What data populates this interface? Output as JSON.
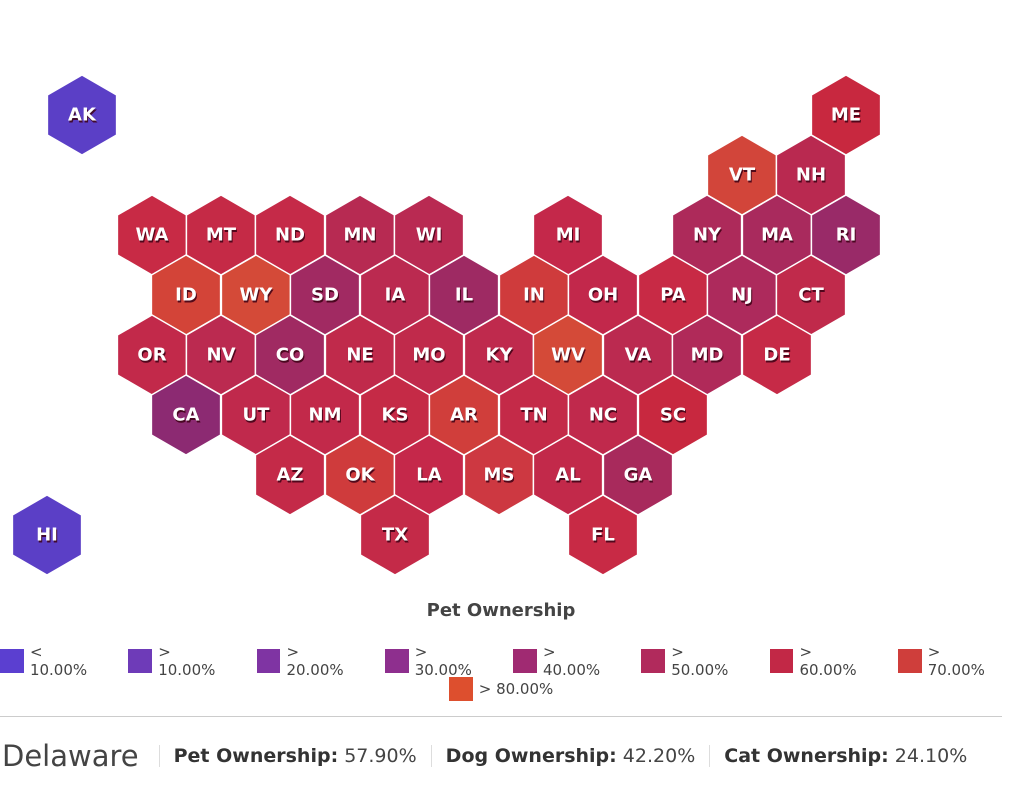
{
  "map": {
    "states": [
      {
        "label": "AK",
        "color": "#5b3fc6"
      },
      {
        "label": "ME",
        "color": "#c8283f"
      },
      {
        "label": "VT",
        "color": "#d2453a"
      },
      {
        "label": "NH",
        "color": "#b92950"
      },
      {
        "label": "WA",
        "color": "#c82a45"
      },
      {
        "label": "MT",
        "color": "#c52a46"
      },
      {
        "label": "ND",
        "color": "#c52a48"
      },
      {
        "label": "MN",
        "color": "#b72a52"
      },
      {
        "label": "WI",
        "color": "#b92a52"
      },
      {
        "label": "MI",
        "color": "#c4284a"
      },
      {
        "label": "NY",
        "color": "#ad2a5a"
      },
      {
        "label": "MA",
        "color": "#a92a5d"
      },
      {
        "label": "RI",
        "color": "#992a68"
      },
      {
        "label": "ID",
        "color": "#d34438"
      },
      {
        "label": "WY",
        "color": "#d44a38"
      },
      {
        "label": "SD",
        "color": "#a12a62"
      },
      {
        "label": "IA",
        "color": "#bb2a50"
      },
      {
        "label": "IL",
        "color": "#9e2a63"
      },
      {
        "label": "IN",
        "color": "#cf3b3c"
      },
      {
        "label": "OH",
        "color": "#c2284b"
      },
      {
        "label": "PA",
        "color": "#c82a45"
      },
      {
        "label": "NJ",
        "color": "#ad2a5c"
      },
      {
        "label": "CT",
        "color": "#c02a4b"
      },
      {
        "label": "OR",
        "color": "#c2294a"
      },
      {
        "label": "NV",
        "color": "#bb2a50"
      },
      {
        "label": "CO",
        "color": "#a02a62"
      },
      {
        "label": "NE",
        "color": "#c02a4b"
      },
      {
        "label": "MO",
        "color": "#c02a4b"
      },
      {
        "label": "KY",
        "color": "#bf2a4d"
      },
      {
        "label": "WV",
        "color": "#d44a38"
      },
      {
        "label": "VA",
        "color": "#bb2a50"
      },
      {
        "label": "MD",
        "color": "#b02a59"
      },
      {
        "label": "DE",
        "color": "#c62a47"
      },
      {
        "label": "CA",
        "color": "#8c2a72"
      },
      {
        "label": "UT",
        "color": "#c0294c"
      },
      {
        "label": "NM",
        "color": "#c2294a"
      },
      {
        "label": "KS",
        "color": "#c52a46"
      },
      {
        "label": "AR",
        "color": "#d03e3b"
      },
      {
        "label": "TN",
        "color": "#c42a48"
      },
      {
        "label": "NC",
        "color": "#c0294c"
      },
      {
        "label": "SC",
        "color": "#c8283f"
      },
      {
        "label": "AZ",
        "color": "#c42a48"
      },
      {
        "label": "OK",
        "color": "#cf3b3c"
      },
      {
        "label": "LA",
        "color": "#c5284a"
      },
      {
        "label": "MS",
        "color": "#cd3841"
      },
      {
        "label": "AL",
        "color": "#c2294a"
      },
      {
        "label": "GA",
        "color": "#a82a5c"
      },
      {
        "label": "HI",
        "color": "#5b3fc6"
      },
      {
        "label": "TX",
        "color": "#c42a48"
      },
      {
        "label": "FL",
        "color": "#c82a45"
      }
    ],
    "legend": {
      "title": "Pet Ownership",
      "items": [
        {
          "label": "< 10.00%",
          "color": "#5b3fd0"
        },
        {
          "label": "> 10.00%",
          "color": "#6e3bb8"
        },
        {
          "label": "> 20.00%",
          "color": "#7f34a3"
        },
        {
          "label": "> 30.00%",
          "color": "#8e2f8e"
        },
        {
          "label": "> 40.00%",
          "color": "#a02a72"
        },
        {
          "label": "> 50.00%",
          "color": "#b12a5c"
        },
        {
          "label": "> 60.00%",
          "color": "#c22846"
        },
        {
          "label": "> 70.00%",
          "color": "#cf3e3b"
        },
        {
          "label": "> 80.00%",
          "color": "#dd4f2e"
        }
      ]
    }
  },
  "footer": {
    "title": "Delaware",
    "stats": [
      {
        "label": "Pet Ownership:",
        "value": "57.90%"
      },
      {
        "label": "Dog Ownership:",
        "value": "42.20%"
      },
      {
        "label": "Cat Ownership:",
        "value": "24.10%"
      }
    ]
  }
}
